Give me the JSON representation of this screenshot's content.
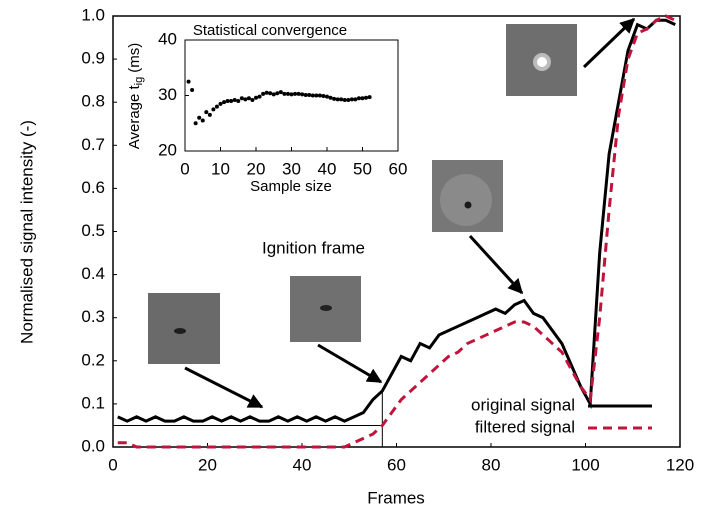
{
  "chart_data": [
    {
      "type": "line",
      "x_label": "Frames",
      "y_label": "Normalised signal intensity (-)",
      "annotation": "Ignition frame",
      "x": [
        1,
        3,
        5,
        7,
        9,
        11,
        13,
        15,
        17,
        19,
        21,
        23,
        25,
        27,
        29,
        31,
        33,
        35,
        37,
        39,
        41,
        43,
        45,
        47,
        49,
        51,
        53,
        55,
        57,
        59,
        61,
        63,
        65,
        67,
        69,
        71,
        73,
        75,
        77,
        79,
        81,
        83,
        85,
        87,
        89,
        91,
        93,
        95,
        97,
        99,
        101,
        103,
        105,
        107,
        109,
        111,
        113,
        115,
        117,
        119
      ],
      "series": [
        {
          "name": "original signal",
          "color": "#000000",
          "dash": false,
          "values": [
            0.07,
            0.06,
            0.07,
            0.06,
            0.07,
            0.06,
            0.06,
            0.07,
            0.06,
            0.06,
            0.07,
            0.06,
            0.07,
            0.06,
            0.07,
            0.06,
            0.06,
            0.07,
            0.06,
            0.07,
            0.06,
            0.07,
            0.06,
            0.07,
            0.06,
            0.07,
            0.08,
            0.11,
            0.13,
            0.17,
            0.21,
            0.2,
            0.24,
            0.23,
            0.26,
            0.27,
            0.28,
            0.29,
            0.3,
            0.31,
            0.32,
            0.31,
            0.33,
            0.34,
            0.31,
            0.3,
            0.27,
            0.24,
            0.19,
            0.14,
            0.1,
            0.45,
            0.68,
            0.8,
            0.92,
            0.98,
            0.97,
            0.99,
            0.99,
            0.98
          ]
        },
        {
          "name": "filtered signal",
          "color": "#c0143c",
          "dash": true,
          "values": [
            0.01,
            0.01,
            0,
            0,
            0,
            0,
            0,
            0,
            0,
            0,
            0,
            0,
            0,
            0,
            0,
            0,
            0,
            0,
            0,
            0,
            0,
            0,
            0,
            0,
            0,
            0.01,
            0.02,
            0.03,
            0.05,
            0.08,
            0.11,
            0.13,
            0.15,
            0.17,
            0.19,
            0.21,
            0.22,
            0.24,
            0.25,
            0.26,
            0.27,
            0.28,
            0.29,
            0.29,
            0.28,
            0.26,
            0.24,
            0.22,
            0.18,
            0.14,
            0.11,
            0.3,
            0.55,
            0.77,
            0.9,
            0.96,
            0.97,
            0.99,
            1.0,
            0.99
          ]
        }
      ],
      "ignition_marker": {
        "frame": 57,
        "level": 0.05,
        "top": 0.13
      },
      "xlim": [
        0,
        120
      ],
      "xticks": [
        0,
        20,
        40,
        60,
        80,
        100,
        120
      ],
      "ylim": [
        0,
        1
      ],
      "yticks": [
        {
          "value": 0,
          "label": "0.0"
        },
        0.1,
        0.2,
        0.3,
        0.4,
        0.5,
        0.6,
        0.7,
        0.8,
        0.9,
        {
          "value": 1,
          "label": "1.0"
        }
      ],
      "legend": "lower right"
    },
    {
      "type": "scatter",
      "title": "Statistical convergence",
      "x_label": "Sample size",
      "y_label": "Average t",
      "y_label_sub": "ig",
      "y_label_end": "(ms)",
      "color": "#000000",
      "x": [
        1,
        2,
        3,
        4,
        5,
        6,
        7,
        8,
        9,
        10,
        11,
        12,
        13,
        14,
        15,
        16,
        17,
        18,
        19,
        20,
        21,
        22,
        23,
        24,
        25,
        26,
        27,
        28,
        29,
        30,
        31,
        32,
        33,
        34,
        35,
        36,
        37,
        38,
        39,
        40,
        41,
        42,
        43,
        44,
        45,
        46,
        47,
        48,
        49,
        50,
        51,
        52
      ],
      "values": [
        32.5,
        31,
        25,
        26,
        25.5,
        27,
        26.5,
        27.5,
        28,
        28.5,
        28.8,
        29,
        29,
        29.2,
        29,
        29.5,
        29.3,
        29.5,
        29.2,
        29.6,
        29.8,
        30.3,
        30.5,
        30.4,
        30.2,
        30.4,
        30.6,
        30.3,
        30.3,
        30.2,
        30.3,
        30.3,
        30.2,
        30.1,
        30.1,
        30,
        30,
        30,
        29.9,
        29.8,
        29.6,
        29.4,
        29.3,
        29.3,
        29.2,
        29.2,
        29.3,
        29.3,
        29.5,
        29.5,
        29.6,
        29.7
      ],
      "xlim": [
        0,
        60
      ],
      "xticks": [
        0,
        10,
        20,
        30,
        40,
        50,
        60
      ],
      "ylim": [
        20,
        40
      ],
      "yticks": [
        20,
        30,
        40
      ]
    }
  ]
}
